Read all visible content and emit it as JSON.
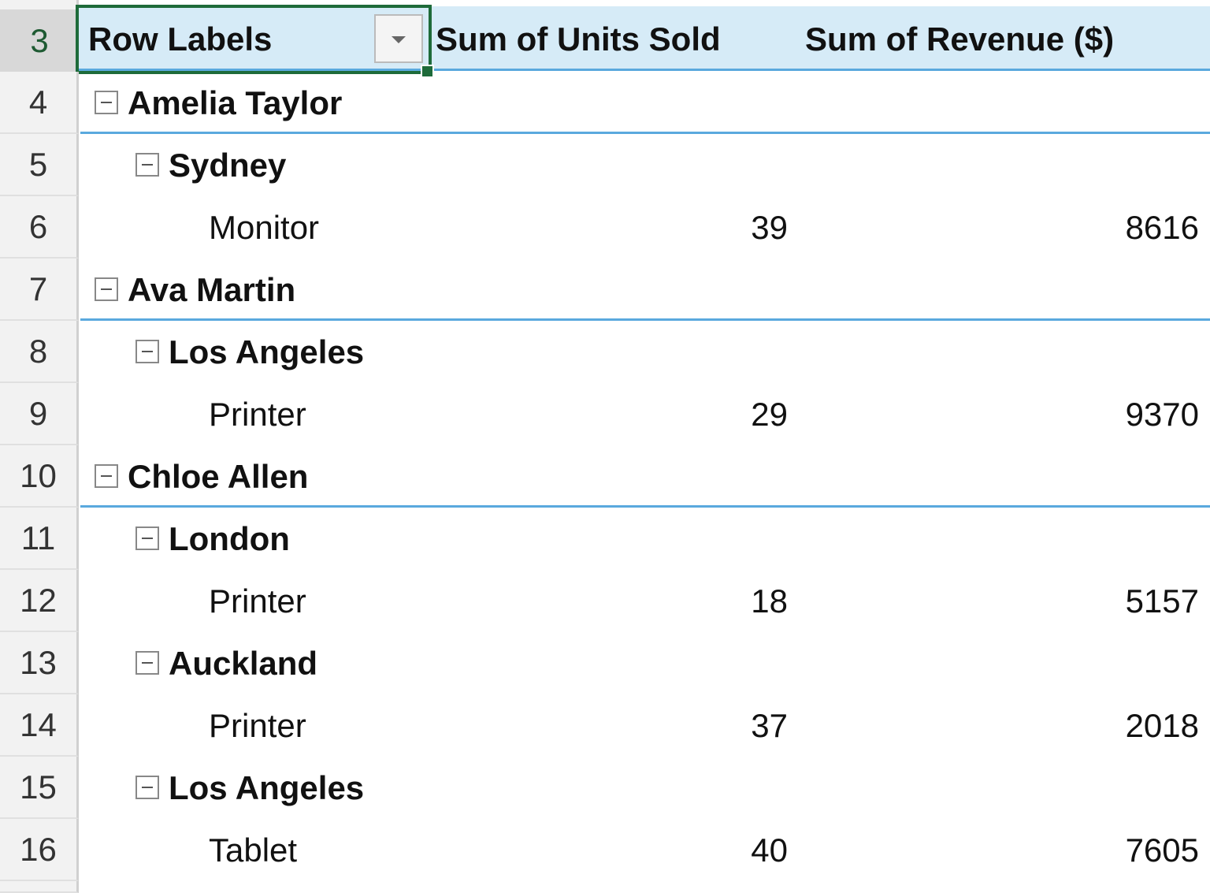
{
  "header": {
    "row": 3,
    "row_labels": "Row Labels",
    "units": "Sum of Units Sold",
    "revenue": "Sum of Revenue ($)"
  },
  "groups": [
    {
      "row": 4,
      "label": "Amelia Taylor",
      "cities": [
        {
          "row": 5,
          "label": "Sydney",
          "items": [
            {
              "row": 6,
              "label": "Monitor",
              "units": 39,
              "revenue": 8616
            }
          ]
        }
      ]
    },
    {
      "row": 7,
      "label": "Ava Martin",
      "cities": [
        {
          "row": 8,
          "label": "Los Angeles",
          "items": [
            {
              "row": 9,
              "label": "Printer",
              "units": 29,
              "revenue": 9370
            }
          ]
        }
      ]
    },
    {
      "row": 10,
      "label": "Chloe Allen",
      "cities": [
        {
          "row": 11,
          "label": "London",
          "items": [
            {
              "row": 12,
              "label": "Printer",
              "units": 18,
              "revenue": 5157
            }
          ]
        },
        {
          "row": 13,
          "label": "Auckland",
          "items": [
            {
              "row": 14,
              "label": "Printer",
              "units": 37,
              "revenue": 2018
            }
          ]
        },
        {
          "row": 15,
          "label": "Los Angeles",
          "items": [
            {
              "row": 16,
              "label": "Tablet",
              "units": 40,
              "revenue": 7605
            }
          ]
        }
      ]
    }
  ]
}
